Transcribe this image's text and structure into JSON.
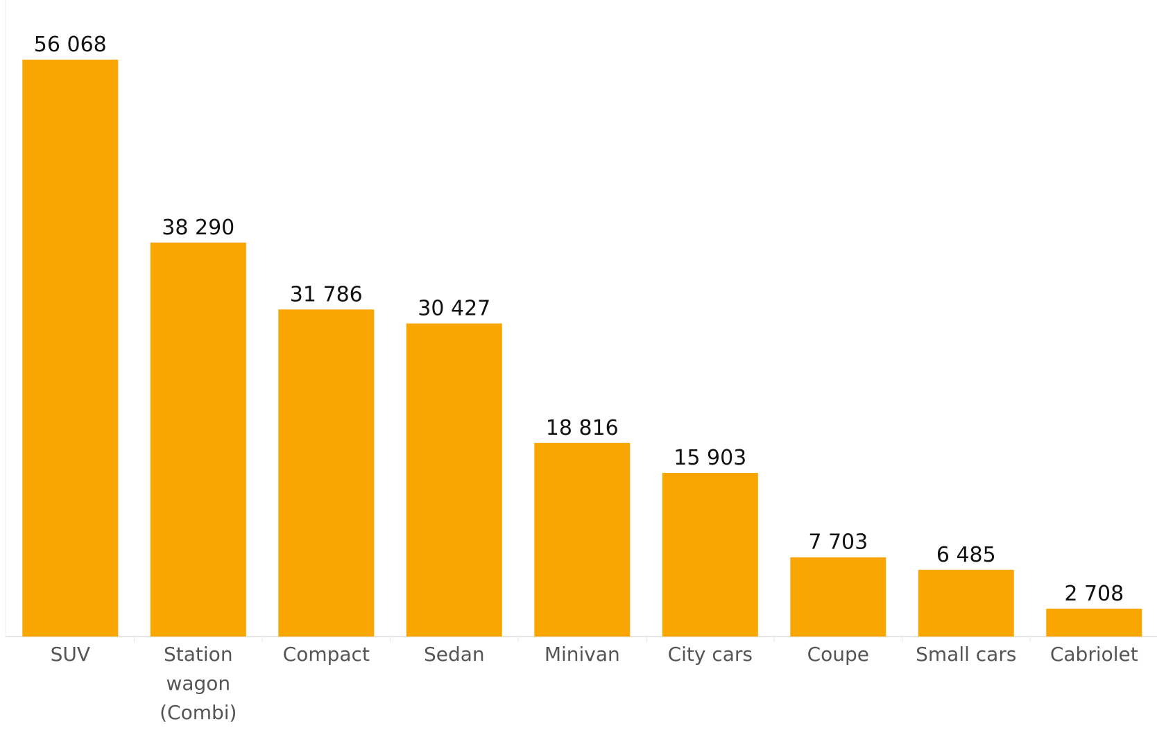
{
  "chart_data": {
    "type": "bar",
    "categories": [
      [
        "SUV"
      ],
      [
        "Station",
        "wagon",
        "(Combi)"
      ],
      [
        "Compact"
      ],
      [
        "Sedan"
      ],
      [
        "Minivan"
      ],
      [
        "City cars"
      ],
      [
        "Coupe"
      ],
      [
        "Small cars"
      ],
      [
        "Cabriolet"
      ]
    ],
    "values": [
      56068,
      38290,
      31786,
      30427,
      18816,
      15903,
      7703,
      6485,
      2708
    ],
    "value_labels": [
      "56 068",
      "38 290",
      "31 786",
      "30 427",
      "18 816",
      "15 903",
      "7 703",
      "6 485",
      "2 708"
    ],
    "ylim": [
      0,
      56068
    ],
    "grid": false,
    "legend": "none",
    "bar_color": "#F9A602",
    "axis_color": "#e6e6e6",
    "title": "",
    "xlabel": "",
    "ylabel": ""
  }
}
